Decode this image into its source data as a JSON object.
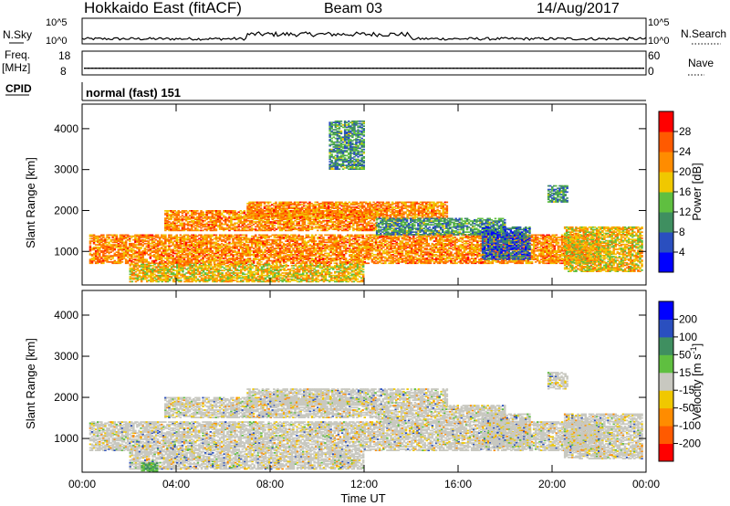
{
  "header": {
    "title": "Hokkaido East (fitACF)",
    "beam": "Beam 03",
    "date": "14/Aug/2017"
  },
  "left_labels": {
    "nsky": "N.Sky",
    "freq_line1": "Freq.",
    "freq_line2": "[MHz]",
    "cpid": "CPID"
  },
  "right_labels": {
    "nsearch": "N.Search",
    "nave": "Nave"
  },
  "cpid_text": "normal (fast) 151",
  "colors": {
    "power_scale": [
      "#0000ff",
      "#2a4fbf",
      "#3f8f60",
      "#5fbf40",
      "#f0c800",
      "#ff8c00",
      "#ff5a00",
      "#ff0000"
    ],
    "velocity_scale": [
      "#ff0000",
      "#ff5a00",
      "#ff8c00",
      "#f0c800",
      "#c8c8c0",
      "#5fbf40",
      "#3f8f60",
      "#2a4fbf",
      "#0000ff"
    ]
  },
  "chart_data": [
    {
      "type": "line",
      "panel": "noise",
      "ylabel_left": "N.Sky",
      "ylabel_right": "N.Search",
      "yticks_left": [
        "10^5",
        "10^0"
      ],
      "yticks_right": [
        "10^5",
        "10^0"
      ],
      "log_scale": true
    },
    {
      "type": "line",
      "panel": "frequency",
      "yticks_left": [
        "18",
        "8"
      ],
      "yticks_right": [
        "60",
        "0"
      ],
      "ylim_left": [
        8,
        18
      ],
      "ylim_right": [
        0,
        60
      ],
      "freq_mhz": 10.8,
      "nave": 17
    },
    {
      "type": "heatmap",
      "panel": "power",
      "ylabel": "Slant Range [km]",
      "yticks": [
        "1000",
        "2000",
        "3000",
        "4000"
      ],
      "ylim": [
        180,
        4600
      ],
      "xlim_hours": [
        0,
        24
      ],
      "colorbar_label": "Power [dB]",
      "colorbar_ticks": [
        "4",
        "8",
        "12",
        "16",
        "20",
        "24",
        "28"
      ],
      "colorbar_range": [
        0,
        32
      ],
      "regions": [
        {
          "t": [
            0.3,
            22.0
          ],
          "r": [
            700,
            1400
          ],
          "level": 28
        },
        {
          "t": [
            2.0,
            12.0
          ],
          "r": [
            250,
            700
          ],
          "level": 24
        },
        {
          "t": [
            3.5,
            12.5
          ],
          "r": [
            1500,
            2000
          ],
          "level": 28
        },
        {
          "t": [
            7.0,
            15.5
          ],
          "r": [
            1800,
            2200
          ],
          "level": 28
        },
        {
          "t": [
            12.5,
            18.0
          ],
          "r": [
            1400,
            1800
          ],
          "level": 16
        },
        {
          "t": [
            17.0,
            19.0
          ],
          "r": [
            800,
            1600
          ],
          "level": 12
        },
        {
          "t": [
            19.8,
            20.6
          ],
          "r": [
            2200,
            2600
          ],
          "level": 16
        },
        {
          "t": [
            20.5,
            23.8
          ],
          "r": [
            500,
            1600
          ],
          "level": 24
        },
        {
          "t": [
            10.5,
            12.0
          ],
          "r": [
            3000,
            4200
          ],
          "level": 16
        }
      ]
    },
    {
      "type": "heatmap",
      "panel": "velocity",
      "ylabel": "Slant Range [km]",
      "yticks": [
        "1000",
        "2000",
        "3000",
        "4000"
      ],
      "ylim": [
        180,
        4600
      ],
      "xlim_hours": [
        0,
        24
      ],
      "xlabel": "Time UT",
      "xticks": [
        "00:00",
        "04:00",
        "08:00",
        "12:00",
        "16:00",
        "20:00",
        "00:00"
      ],
      "colorbar_label": "Velocity [m s-1]",
      "colorbar_ticks": [
        "200",
        "100",
        "50",
        "15",
        "-15",
        "-50",
        "-100",
        "-200"
      ],
      "regions": [
        {
          "t": [
            0.3,
            22.0
          ],
          "r": [
            700,
            1400
          ],
          "level": 0
        },
        {
          "t": [
            2.0,
            12.0
          ],
          "r": [
            250,
            700
          ],
          "level": 0
        },
        {
          "t": [
            3.5,
            12.5
          ],
          "r": [
            1500,
            2000
          ],
          "level": 0
        },
        {
          "t": [
            7.0,
            15.5
          ],
          "r": [
            1800,
            2200
          ],
          "level": 0
        },
        {
          "t": [
            12.5,
            18.0
          ],
          "r": [
            1400,
            1800
          ],
          "level": 0
        },
        {
          "t": [
            17.0,
            19.0
          ],
          "r": [
            800,
            1600
          ],
          "level": 0
        },
        {
          "t": [
            19.8,
            20.6
          ],
          "r": [
            2200,
            2600
          ],
          "level": 0
        },
        {
          "t": [
            20.5,
            23.8
          ],
          "r": [
            500,
            1600
          ],
          "level": 0
        },
        {
          "t": [
            2.5,
            3.2
          ],
          "r": [
            180,
            400
          ],
          "level": 30
        }
      ]
    }
  ]
}
